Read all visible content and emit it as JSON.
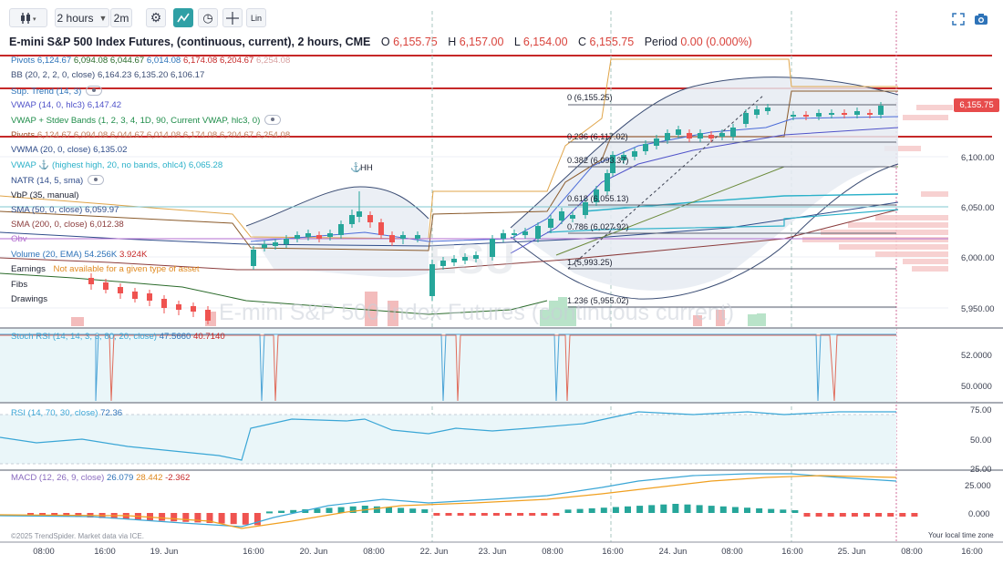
{
  "toolbar": {
    "interval_label": "2 hours",
    "range_label": "2m",
    "lin_label": "Lin"
  },
  "header": {
    "symbol": "E-mini S&P 500 Index Futures, (continuous, current), 2 hours, CME",
    "o_label": "O",
    "o_value": "6,155.75",
    "h_label": "H",
    "h_value": "6,157.00",
    "l_label": "L",
    "l_value": "6,154.00",
    "c_label": "C",
    "c_value": "6,155.75",
    "period_label": "Period",
    "period_value": "0.00 (0.000%)"
  },
  "legend": {
    "pivots_label": "Pivots",
    "pivots_values": [
      "6,124.67",
      "6,094.08",
      "6,044.67",
      "6,014.08",
      "6,174.08",
      "6,204.67",
      "6,254.08"
    ],
    "bb_label": "BB (20, 2, 2, 0, close)",
    "bb_values": "6,164.23 6,135.20 6,106.17",
    "suptrend_label": "Sup. Trend (14, 3)",
    "vwap_label": "VWAP (14, 0, hlc3)",
    "vwap_value": "6,147.42",
    "vwap_bands_label": "VWAP + Stdev Bands (1, 2, 3, 4, 1D, 90, Current VWAP, hlc3, 0)",
    "pivots2_label": "Pivots",
    "pivots2_values": "6,124.67 6,094.08 6,044.67 6,014.08 6,174.08 6,204.67 6,254.08",
    "vwma_label": "VWMA (20, 0, close)",
    "vwma_value": "6,135.02",
    "vwap_anchor_label": "VWAP ⚓ (highest high, 20, no bands, ohlc4)",
    "vwap_anchor_value": "6,065.28",
    "natr_label": "NATR (14, 5, sma)",
    "vbp_label": "VbP (35, manual)",
    "sma50_label": "SMA (50, 0, close)",
    "sma50_value": "6,059.97",
    "sma200_label": "SMA (200, 0, close)",
    "sma200_value": "6,012.38",
    "obv_label": "Obv",
    "volume_label": "Volume (20, EMA)",
    "volume_value1": "54.256K",
    "volume_value2": "3.924K",
    "earnings_label": "Earnings",
    "earnings_note": "Not available for a given type of asset",
    "fibs_label": "Fibs",
    "drawings_label": "Drawings"
  },
  "price_axis": {
    "last_price": "6,155.75",
    "ticks": [
      "6,100.00",
      "6,050.00",
      "6,000.00",
      "5,950.00"
    ]
  },
  "fib_levels": [
    {
      "label": "0 (6,155.25)"
    },
    {
      "label": "0.236 (6,117.02)"
    },
    {
      "label": "0.382 (6,093.37)"
    },
    {
      "label": "0.618 (6,055.13)"
    },
    {
      "label": "0.786 (6,027.92)"
    },
    {
      "label": "1 (5,993.25)"
    },
    {
      "label": "1.236 (5,955.02)"
    }
  ],
  "annotation": {
    "hh_label": "HH"
  },
  "watermark": {
    "text": "E-mini S&P 500 Index Futures (continuous current)",
    "short": "ESU"
  },
  "stoch_rsi": {
    "label": "Stoch RSI (14, 14, 3, 3, 80, 20, close)",
    "k_value": "47.5660",
    "d_value": "40.7140",
    "ticks": [
      "52.0000",
      "50.0000"
    ]
  },
  "rsi": {
    "label": "RSI (14, 70, 30, close)",
    "value": "72.36",
    "ticks": [
      "75.00",
      "50.00",
      "25.00"
    ]
  },
  "macd": {
    "label": "MACD (12, 26, 9, close)",
    "macd_value": "26.079",
    "signal_value": "28.442",
    "hist_value": "-2.362",
    "ticks": [
      "25.000",
      "0.000"
    ]
  },
  "time_axis": {
    "labels": [
      "08:00",
      "16:00",
      "19. Jun",
      "16:00",
      "20. Jun",
      "08:00",
      "22. Jun",
      "23. Jun",
      "08:00",
      "16:00",
      "24. Jun",
      "08:00",
      "16:00",
      "25. Jun",
      "08:00",
      "16:00"
    ],
    "local_time_label": "Your local time zone"
  },
  "footer": {
    "credit": "©2025 TrendSpider. Market data via ICE."
  },
  "colors": {
    "up": "#26a69a",
    "down": "#ef5350",
    "accent": "#2fa0a5",
    "resistance": "#c62828"
  }
}
